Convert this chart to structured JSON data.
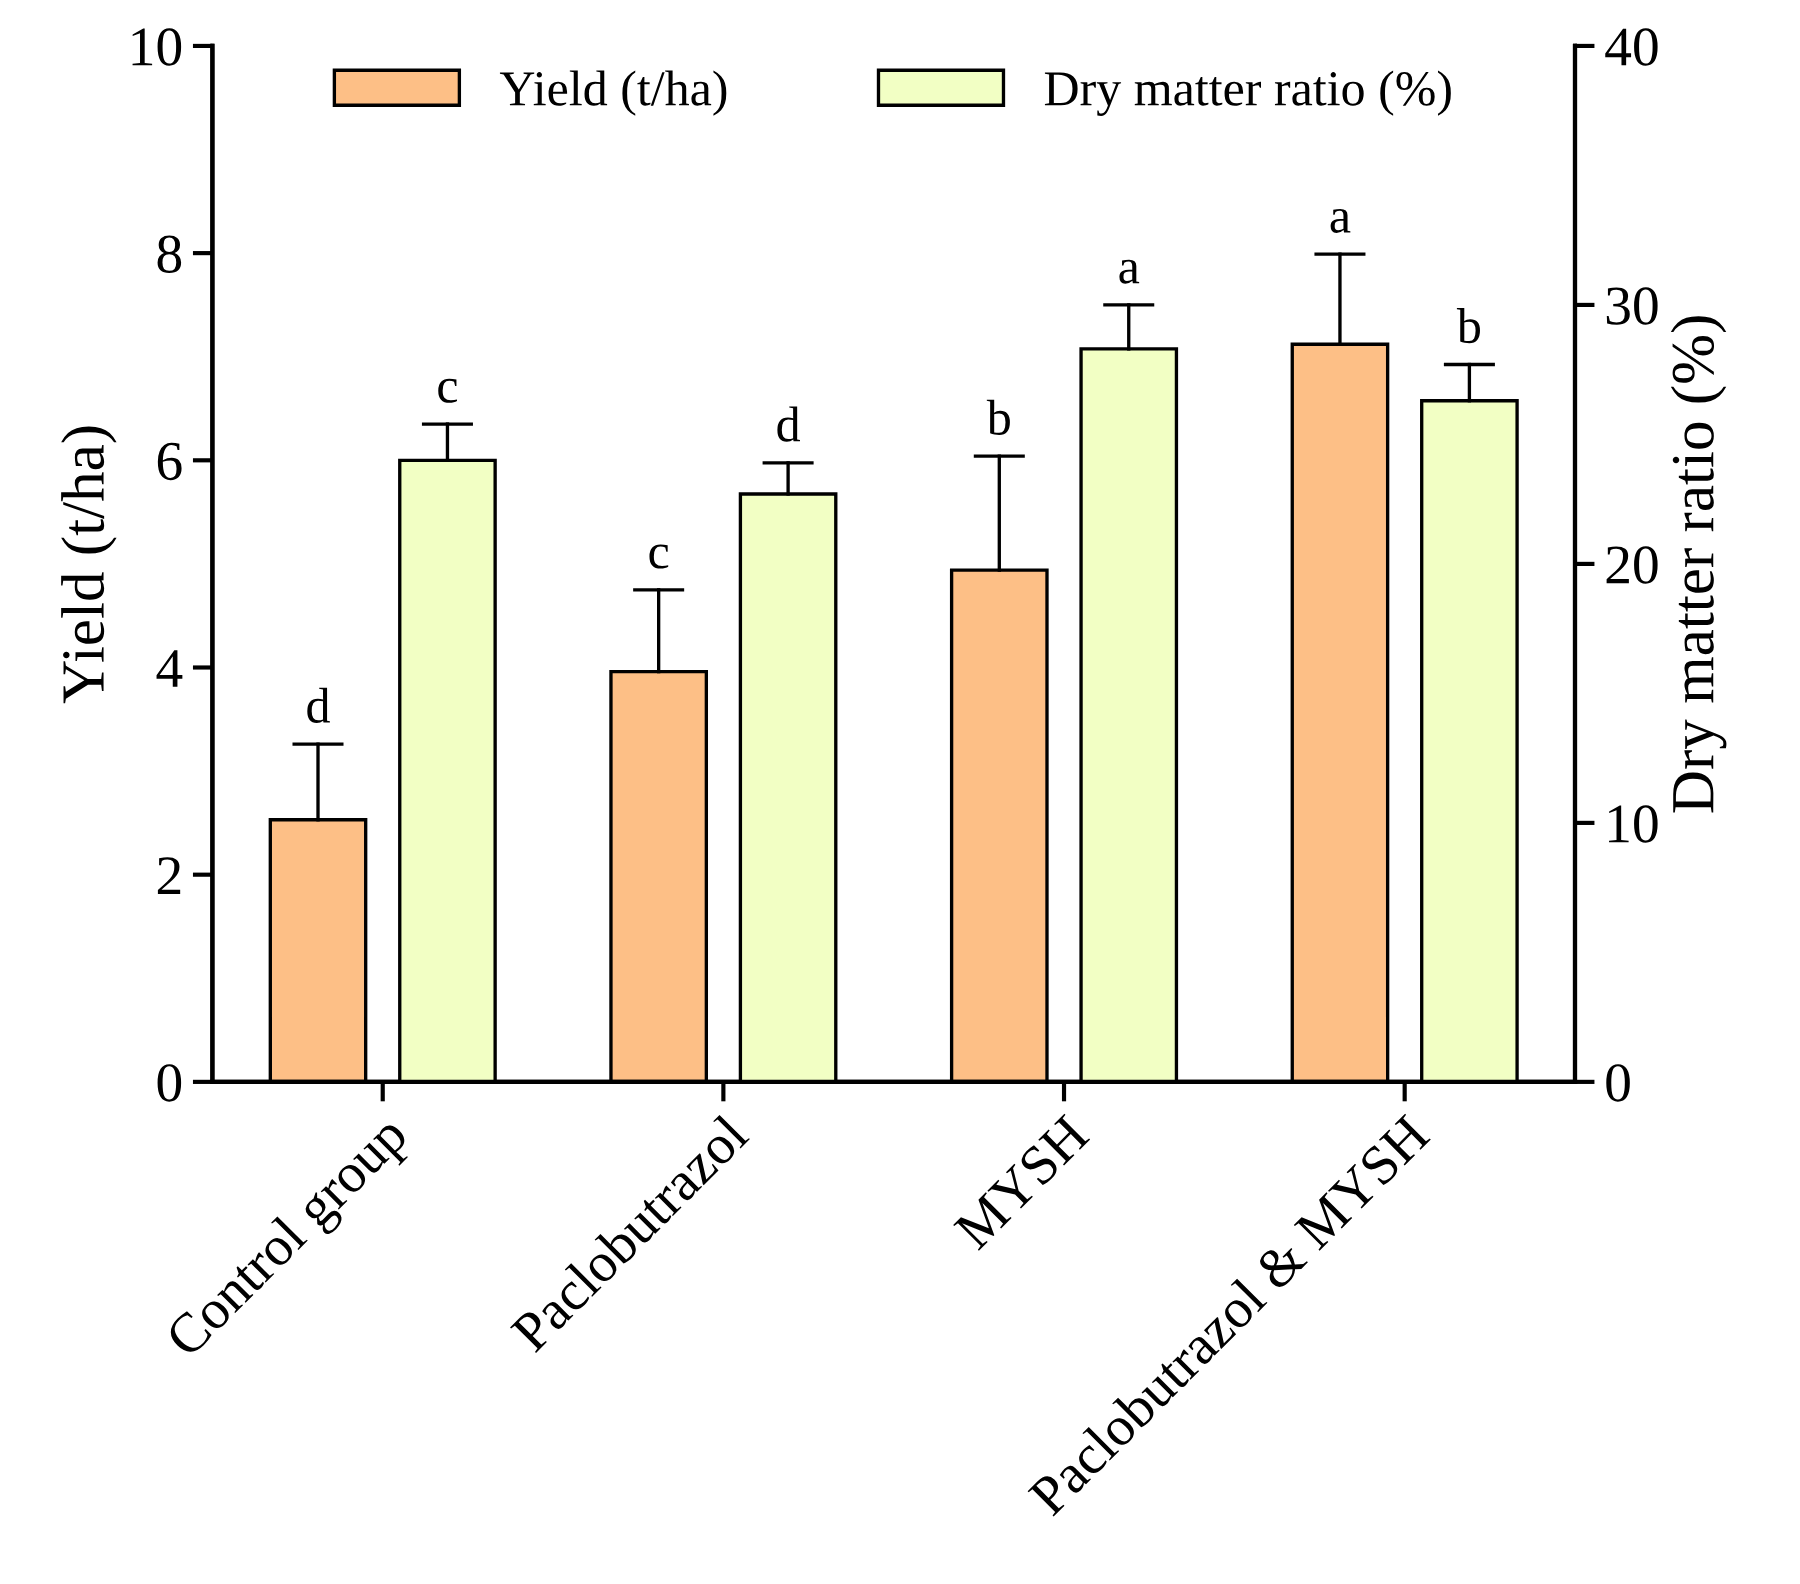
{
  "chart_data": {
    "type": "bar",
    "categories": [
      "Control group",
      "Paclobutrazol",
      "MYSH",
      "Paclobutrazol & MYSH"
    ],
    "ylabel": "Yield (t/ha)",
    "y2label": "Dry matter ratio (%)",
    "ylim": [
      0,
      10
    ],
    "yticks": [
      0,
      2,
      4,
      6,
      8,
      10
    ],
    "y2lim": [
      0,
      40
    ],
    "y2ticks": [
      0,
      10,
      20,
      30,
      40
    ],
    "legend": "top",
    "grid": false,
    "series": [
      {
        "name": "Yield (t/ha)",
        "color": "#fdbf86",
        "values": [
          2.53,
          3.96,
          4.94,
          7.12
        ],
        "errors": [
          [
            2.53,
            3.26
          ],
          [
            3.96,
            4.75
          ],
          [
            4.94,
            6.04
          ],
          [
            7.12,
            7.99
          ]
        ],
        "value_labels": [
          "d",
          "c",
          "b",
          "a"
        ]
      },
      {
        "name": "Dry matter ratio (%)",
        "color": "#f2ffc4",
        "axis": "y2",
        "values": [
          24.0,
          22.7,
          28.3,
          26.3
        ],
        "errors": [
          [
            24.0,
            25.4
          ],
          [
            22.7,
            23.9
          ],
          [
            28.3,
            30.0
          ],
          [
            26.3,
            27.7
          ]
        ],
        "value_labels": [
          "c",
          "d",
          "a",
          "b"
        ]
      }
    ]
  }
}
